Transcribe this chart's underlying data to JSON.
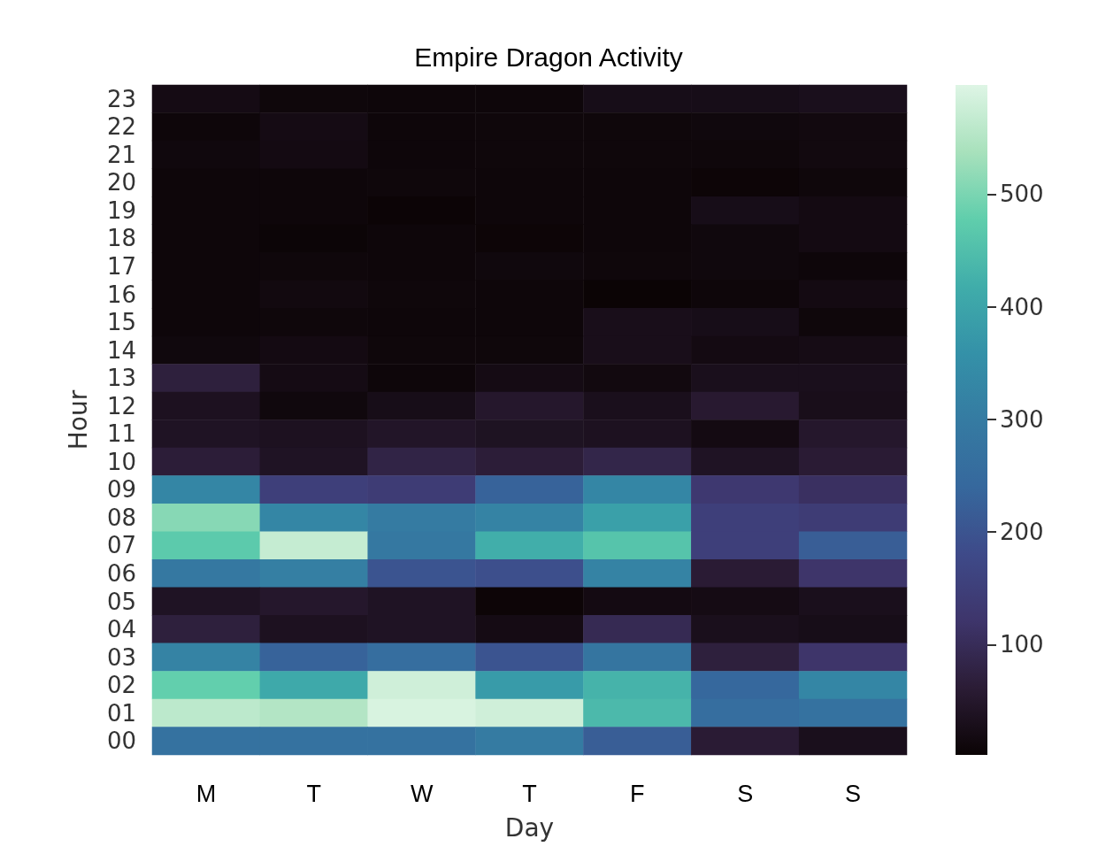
{
  "chart_data": {
    "type": "heatmap",
    "title": "Empire Dragon Activity",
    "xlabel": "Day",
    "ylabel": "Hour",
    "categories": [
      "M",
      "T",
      "W",
      "T",
      "F",
      "S",
      "S"
    ],
    "y_categories": [
      "23",
      "22",
      "21",
      "20",
      "19",
      "18",
      "17",
      "16",
      "15",
      "14",
      "13",
      "12",
      "11",
      "10",
      "09",
      "08",
      "07",
      "06",
      "05",
      "04",
      "03",
      "02",
      "01",
      "00"
    ],
    "cells": [
      [
        20,
        10,
        8,
        8,
        25,
        25,
        30
      ],
      [
        8,
        20,
        8,
        10,
        10,
        12,
        15
      ],
      [
        12,
        18,
        8,
        10,
        10,
        10,
        15
      ],
      [
        8,
        8,
        10,
        8,
        8,
        5,
        10
      ],
      [
        8,
        8,
        3,
        8,
        8,
        25,
        18
      ],
      [
        8,
        4,
        8,
        5,
        8,
        12,
        18
      ],
      [
        8,
        10,
        8,
        12,
        10,
        12,
        8
      ],
      [
        8,
        15,
        10,
        8,
        2,
        8,
        18
      ],
      [
        8,
        10,
        8,
        8,
        28,
        25,
        10
      ],
      [
        12,
        18,
        10,
        10,
        28,
        18,
        22
      ],
      [
        70,
        20,
        8,
        20,
        15,
        30,
        30
      ],
      [
        35,
        12,
        25,
        50,
        30,
        55,
        28
      ],
      [
        40,
        35,
        45,
        38,
        35,
        18,
        50
      ],
      [
        65,
        40,
        80,
        65,
        85,
        40,
        60
      ],
      [
        330,
        150,
        140,
        230,
        330,
        130,
        110
      ],
      [
        510,
        330,
        300,
        320,
        390,
        150,
        140
      ],
      [
        470,
        570,
        290,
        420,
        460,
        150,
        220
      ],
      [
        290,
        310,
        200,
        190,
        320,
        60,
        120
      ],
      [
        40,
        50,
        40,
        5,
        18,
        20,
        30
      ],
      [
        70,
        35,
        40,
        20,
        95,
        30,
        25
      ],
      [
        320,
        230,
        260,
        200,
        280,
        70,
        120
      ],
      [
        480,
        410,
        580,
        380,
        430,
        240,
        330
      ],
      [
        560,
        550,
        590,
        580,
        440,
        260,
        270
      ],
      [
        270,
        270,
        270,
        300,
        220,
        60,
        30
      ]
    ],
    "clim": [
      2,
      597
    ],
    "cticks": [
      100,
      200,
      300,
      400,
      500
    ]
  }
}
